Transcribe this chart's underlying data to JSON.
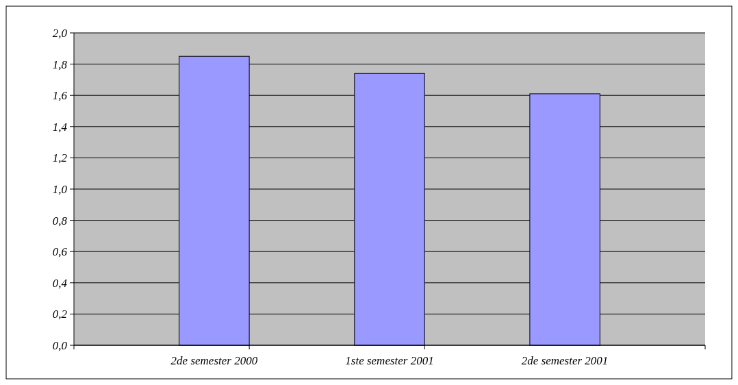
{
  "chart_data": {
    "type": "bar",
    "categories": [
      "2de semester 2000",
      "1ste semester 2001",
      "2de semester 2001"
    ],
    "values": [
      1.85,
      1.74,
      1.61
    ],
    "color": "#9999ff",
    "ylim": [
      0,
      2
    ],
    "yticks": [
      {
        "value": 0,
        "label": "0,0"
      },
      {
        "value": 0.2,
        "label": "0,2"
      },
      {
        "value": 0.4,
        "label": "0,4"
      },
      {
        "value": 0.6,
        "label": "0,6"
      },
      {
        "value": 0.8,
        "label": "0,8"
      },
      {
        "value": 1,
        "label": "1,0"
      },
      {
        "value": 1.2,
        "label": "1,2"
      },
      {
        "value": 1.4,
        "label": "1,4"
      },
      {
        "value": 1.6,
        "label": "1,6"
      },
      {
        "value": 1.8,
        "label": "1,8"
      },
      {
        "value": 2,
        "label": "2,0"
      }
    ],
    "grid": "y"
  }
}
